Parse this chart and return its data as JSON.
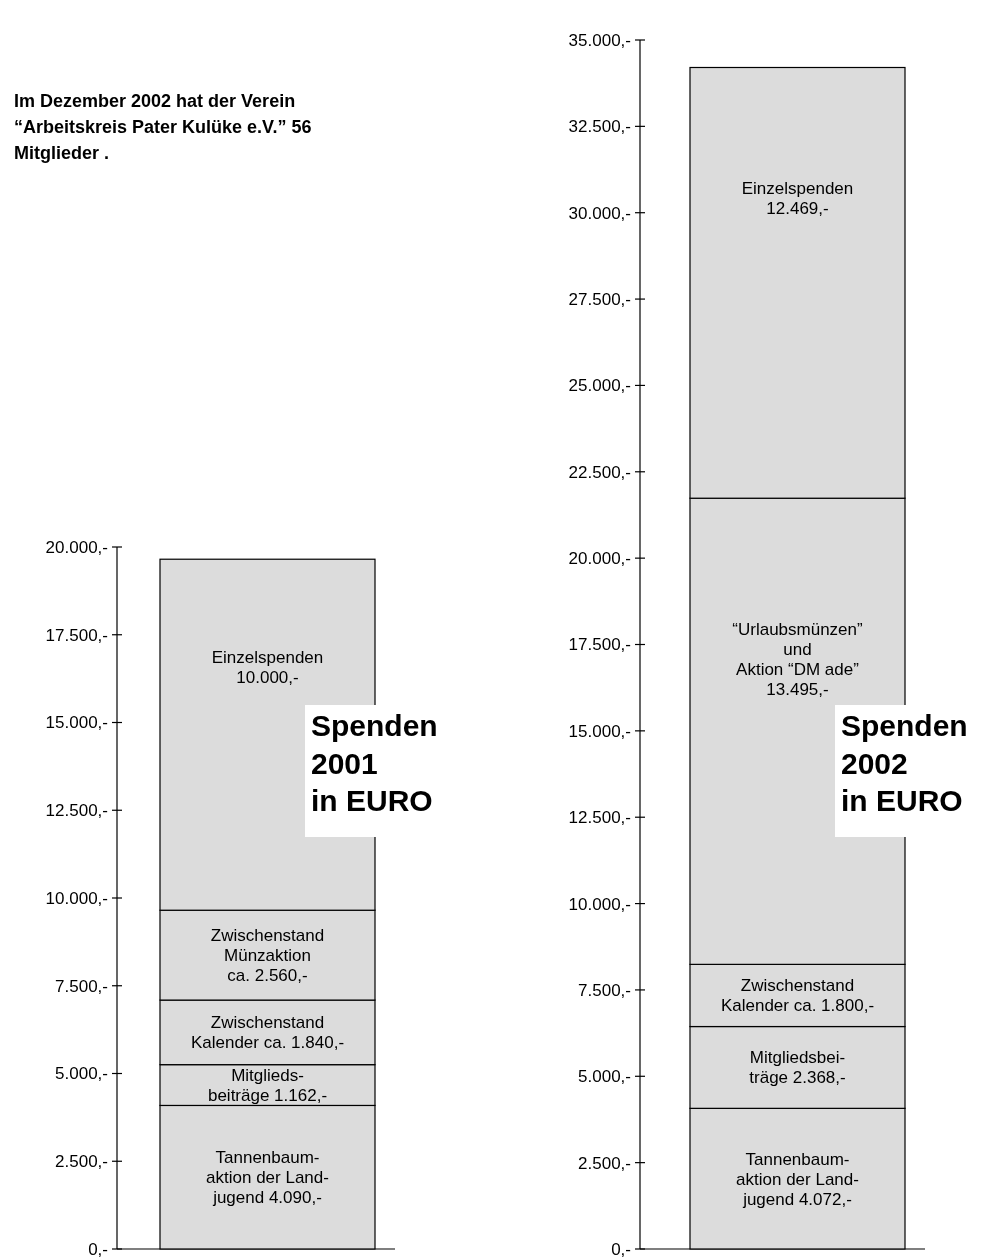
{
  "chart_data": [
    {
      "type": "bar",
      "title": "Spenden 2001 in EURO",
      "stacked": true,
      "categories": [
        null
      ],
      "annotations": [
        "Im Dezember 2002 hat der Verein “Arbeitskreis Pater Kulüke e.V.” 56 Mitglieder ."
      ],
      "ylim": [
        0,
        20000
      ],
      "yticks": [
        {
          "value": 0,
          "label": "0,-"
        },
        {
          "value": 2500,
          "label": "2.500,-"
        },
        {
          "value": 5000,
          "label": "5.000,-"
        },
        {
          "value": 7500,
          "label": "7.500,-"
        },
        {
          "value": 10000,
          "label": "10.000,-"
        },
        {
          "value": 12500,
          "label": "12.500,-"
        },
        {
          "value": 15000,
          "label": "15.000,-"
        },
        {
          "value": 17500,
          "label": "17.500,-"
        },
        {
          "value": 20000,
          "label": "20.000,-"
        }
      ],
      "series": [
        {
          "color": "#dcdcdc",
          "values": [
            4090
          ],
          "value_labels": [
            "Tannenbaum-\naktion der Land-\njugend 4.090,-"
          ]
        },
        {
          "color": "#dcdcdc",
          "values": [
            1162
          ],
          "value_labels": [
            "Mitglieds-\nbeiträge 1.162,-"
          ]
        },
        {
          "color": "#dcdcdc",
          "values": [
            1840
          ],
          "value_labels": [
            "Zwischenstand\nKalender ca. 1.840,-"
          ]
        },
        {
          "color": "#dcdcdc",
          "values": [
            2560
          ],
          "value_labels": [
            "Zwischenstand\nMünzaktion\nca. 2.560,-"
          ]
        },
        {
          "color": "#dcdcdc",
          "values": [
            10000
          ],
          "value_labels": [
            "Einzelspenden\n10.000,-"
          ]
        }
      ]
    },
    {
      "type": "bar",
      "title": "Spenden 2002 in EURO",
      "stacked": true,
      "categories": [
        null
      ],
      "ylim": [
        0,
        35000
      ],
      "yticks": [
        {
          "value": 0,
          "label": "0,-"
        },
        {
          "value": 2500,
          "label": "2.500,-"
        },
        {
          "value": 5000,
          "label": "5.000,-"
        },
        {
          "value": 7500,
          "label": "7.500,-"
        },
        {
          "value": 10000,
          "label": "10.000,-"
        },
        {
          "value": 12500,
          "label": "12.500,-"
        },
        {
          "value": 15000,
          "label": "15.000,-"
        },
        {
          "value": 17500,
          "label": "17.500,-"
        },
        {
          "value": 20000,
          "label": "20.000,-"
        },
        {
          "value": 22500,
          "label": "22.500,-"
        },
        {
          "value": 25000,
          "label": "25.000,-"
        },
        {
          "value": 27500,
          "label": "27.500,-"
        },
        {
          "value": 30000,
          "label": "30.000,-"
        },
        {
          "value": 32500,
          "label": "32.500,-"
        },
        {
          "value": 35000,
          "label": "35.000,-"
        }
      ],
      "series": [
        {
          "color": "#dcdcdc",
          "values": [
            4072
          ],
          "value_labels": [
            "Tannenbaum-\naktion der Land-\njugend 4.072,-"
          ]
        },
        {
          "color": "#dcdcdc",
          "values": [
            2368
          ],
          "value_labels": [
            "Mitgliedsbei-\nträge 2.368,-"
          ]
        },
        {
          "color": "#dcdcdc",
          "values": [
            1800
          ],
          "value_labels": [
            "Zwischenstand\nKalender ca. 1.800,-"
          ]
        },
        {
          "color": "#dcdcdc",
          "values": [
            13495
          ],
          "value_labels": [
            "“Urlaubsmünzen”\nund\nAktion “DM ade”\n13.495,-"
          ]
        },
        {
          "color": "#dcdcdc",
          "values": [
            12469
          ],
          "value_labels": [
            "Einzelspenden\n12.469,-"
          ]
        }
      ]
    }
  ]
}
